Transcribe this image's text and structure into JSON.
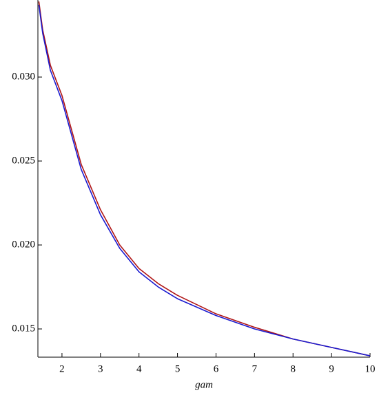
{
  "chart_data": {
    "type": "line",
    "x_label": "gam",
    "x": [
      1.4,
      1.5,
      1.7,
      2,
      2.5,
      3,
      3.5,
      4,
      4.5,
      5,
      6,
      7,
      8,
      9,
      10
    ],
    "series": [
      {
        "color": "#b01515",
        "values": [
          0.0345,
          0.0328,
          0.0307,
          0.0289,
          0.0248,
          0.0221,
          0.02,
          0.0186,
          0.0177,
          0.017,
          0.0159,
          0.0151,
          0.0144,
          0.0139,
          0.0134
        ]
      },
      {
        "color": "#1a1ad0",
        "values": [
          0.0343,
          0.0326,
          0.0304,
          0.0286,
          0.0245,
          0.0218,
          0.0198,
          0.0184,
          0.0175,
          0.0168,
          0.0158,
          0.015,
          0.0144,
          0.0139,
          0.0134
        ]
      }
    ],
    "xlim": [
      1.375,
      10
    ],
    "ylim": [
      0.01332,
      0.03459
    ],
    "xticks": [
      2,
      3,
      4,
      5,
      6,
      7,
      8,
      9,
      10
    ],
    "yticks": [
      {
        "value": 0.015,
        "label": "0.015"
      },
      {
        "value": 0.02,
        "label": "0.020"
      },
      {
        "value": 0.025,
        "label": "0.025"
      },
      {
        "value": 0.03,
        "label": "0.030"
      }
    ]
  }
}
